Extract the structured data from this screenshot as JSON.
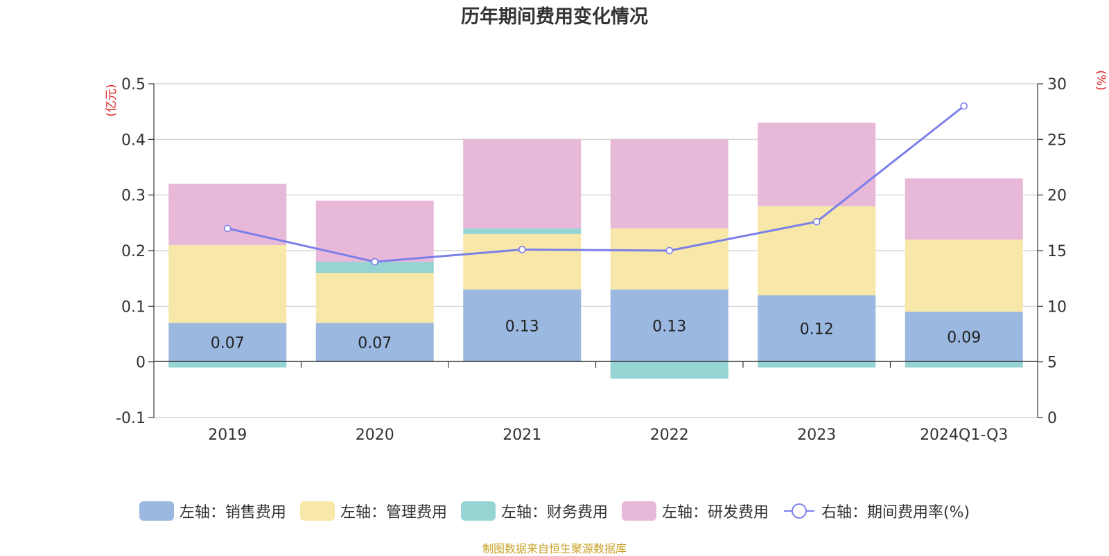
{
  "chart_data": {
    "type": "bar",
    "title": "历年期间费用变化情况",
    "categories": [
      "2019",
      "2020",
      "2021",
      "2022",
      "2023",
      "2024Q1-Q3"
    ],
    "series": [
      {
        "name": "左轴：销售费用",
        "axis": "left",
        "kind": "stacked-bar",
        "color": "#9bb8e0",
        "values": [
          0.07,
          0.07,
          0.13,
          0.13,
          0.12,
          0.09
        ]
      },
      {
        "name": "左轴：管理费用",
        "axis": "left",
        "kind": "stacked-bar",
        "color": "#f7e7a8",
        "values": [
          0.14,
          0.09,
          0.1,
          0.11,
          0.16,
          0.13
        ]
      },
      {
        "name": "左轴：财务费用",
        "axis": "left",
        "kind": "stacked-bar",
        "color": "#96d4d4",
        "values": [
          -0.01,
          0.02,
          0.01,
          -0.03,
          -0.01,
          -0.01
        ]
      },
      {
        "name": "左轴：研发费用",
        "axis": "left",
        "kind": "stacked-bar",
        "color": "#e8b8d8",
        "values": [
          0.11,
          0.11,
          0.16,
          0.16,
          0.15,
          0.11
        ]
      },
      {
        "name": "右轴：期间费用率(%)",
        "axis": "right",
        "kind": "line",
        "color": "#7b7fea",
        "values": [
          17.0,
          14.0,
          15.1,
          15.0,
          17.6,
          28.0
        ]
      }
    ],
    "data_labels": [
      "0.07",
      "0.07",
      "0.13",
      "0.13",
      "0.12",
      "0.09"
    ],
    "left_axis": {
      "unit": "(亿元)",
      "min": -0.1,
      "max": 0.5,
      "ticks": [
        -0.1,
        0,
        0.1,
        0.2,
        0.3,
        0.4,
        0.5
      ],
      "tick_labels": [
        "-0.1",
        "0",
        "0.1",
        "0.2",
        "0.3",
        "0.4",
        "0.5"
      ]
    },
    "right_axis": {
      "unit": "(%)",
      "min": 0,
      "max": 30,
      "ticks": [
        0,
        5,
        10,
        15,
        20,
        25,
        30
      ],
      "tick_labels": [
        "0",
        "5",
        "10",
        "15",
        "20",
        "25",
        "30"
      ]
    },
    "grid": true,
    "legend_position": "bottom"
  },
  "colors": {
    "axis_unit": "#e02020",
    "source": "#c9a227",
    "grid": "#cccccc"
  },
  "source_note": "制图数据来自恒生聚源数据库"
}
